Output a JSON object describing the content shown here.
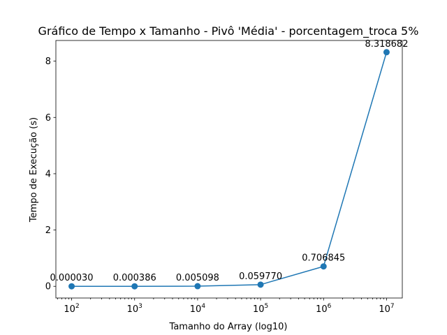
{
  "chart_data": {
    "type": "line",
    "title": "Gráfico de Tempo x Tamanho - Pivô 'Média' - porcentagem_troca 5%",
    "xlabel": "Tamanho do Array (log10)",
    "ylabel": "Tempo de Execução (s)",
    "x_scale": "log",
    "x": [
      100,
      1000,
      10000,
      100000,
      1000000,
      10000000
    ],
    "x_tick_labels": [
      {
        "base": "10",
        "exp": "2"
      },
      {
        "base": "10",
        "exp": "3"
      },
      {
        "base": "10",
        "exp": "4"
      },
      {
        "base": "10",
        "exp": "5"
      },
      {
        "base": "10",
        "exp": "6"
      },
      {
        "base": "10",
        "exp": "7"
      }
    ],
    "series": [
      {
        "values": [
          3e-05,
          0.000386,
          0.005098,
          0.05977,
          0.706845,
          8.318682
        ],
        "labels": [
          "0.000030",
          "0.000386",
          "0.005098",
          "0.059770",
          "0.706845",
          "8.318682"
        ],
        "color": "#1f77b4"
      }
    ],
    "y_ticks": [
      0,
      2,
      4,
      6,
      8
    ],
    "y_tick_labels": [
      "0",
      "2",
      "4",
      "6",
      "8"
    ],
    "ylim": [
      -0.4159,
      8.7346
    ],
    "xlim_log10": [
      1.75,
      7.25
    ],
    "grid": false,
    "legend": "none"
  }
}
